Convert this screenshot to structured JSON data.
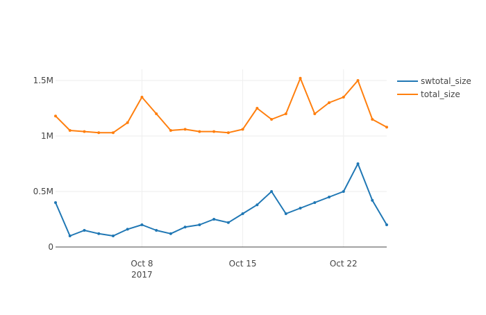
{
  "chart_data": {
    "type": "line",
    "title": "",
    "xlabel": "",
    "ylabel": "",
    "x_range": [
      "2017-10-02",
      "2017-10-25"
    ],
    "ylim": [
      0,
      1600000
    ],
    "grid": true,
    "legend_placement": "top-right",
    "x_ticks": [
      {
        "date": "2017-10-08",
        "label": "Oct 8",
        "sublabel": "2017"
      },
      {
        "date": "2017-10-15",
        "label": "Oct 15",
        "sublabel": ""
      },
      {
        "date": "2017-10-22",
        "label": "Oct 22",
        "sublabel": ""
      }
    ],
    "y_ticks": [
      {
        "value": 0,
        "label": "0"
      },
      {
        "value": 500000,
        "label": "0.5M"
      },
      {
        "value": 1000000,
        "label": "1M"
      },
      {
        "value": 1500000,
        "label": "1.5M"
      }
    ],
    "series": [
      {
        "name": "swtotal_size",
        "color": "#1f77b4",
        "x": [
          "2017-10-02",
          "2017-10-03",
          "2017-10-04",
          "2017-10-05",
          "2017-10-06",
          "2017-10-07",
          "2017-10-08",
          "2017-10-09",
          "2017-10-10",
          "2017-10-11",
          "2017-10-12",
          "2017-10-13",
          "2017-10-14",
          "2017-10-15",
          "2017-10-16",
          "2017-10-17",
          "2017-10-18",
          "2017-10-19",
          "2017-10-20",
          "2017-10-21",
          "2017-10-22",
          "2017-10-23",
          "2017-10-24",
          "2017-10-25"
        ],
        "y": [
          400000,
          100000,
          150000,
          120000,
          100000,
          160000,
          200000,
          150000,
          120000,
          180000,
          200000,
          250000,
          220000,
          300000,
          380000,
          500000,
          300000,
          350000,
          400000,
          450000,
          500000,
          750000,
          420000,
          200000
        ]
      },
      {
        "name": "total_size",
        "color": "#ff7f0e",
        "x": [
          "2017-10-02",
          "2017-10-03",
          "2017-10-04",
          "2017-10-05",
          "2017-10-06",
          "2017-10-07",
          "2017-10-08",
          "2017-10-09",
          "2017-10-10",
          "2017-10-11",
          "2017-10-12",
          "2017-10-13",
          "2017-10-14",
          "2017-10-15",
          "2017-10-16",
          "2017-10-17",
          "2017-10-18",
          "2017-10-19",
          "2017-10-20",
          "2017-10-21",
          "2017-10-22",
          "2017-10-23",
          "2017-10-24",
          "2017-10-25"
        ],
        "y": [
          1180000,
          1050000,
          1040000,
          1030000,
          1030000,
          1120000,
          1350000,
          1200000,
          1050000,
          1060000,
          1040000,
          1040000,
          1030000,
          1060000,
          1250000,
          1150000,
          1200000,
          1520000,
          1200000,
          1300000,
          1350000,
          1500000,
          1150000,
          1080000
        ]
      }
    ]
  }
}
